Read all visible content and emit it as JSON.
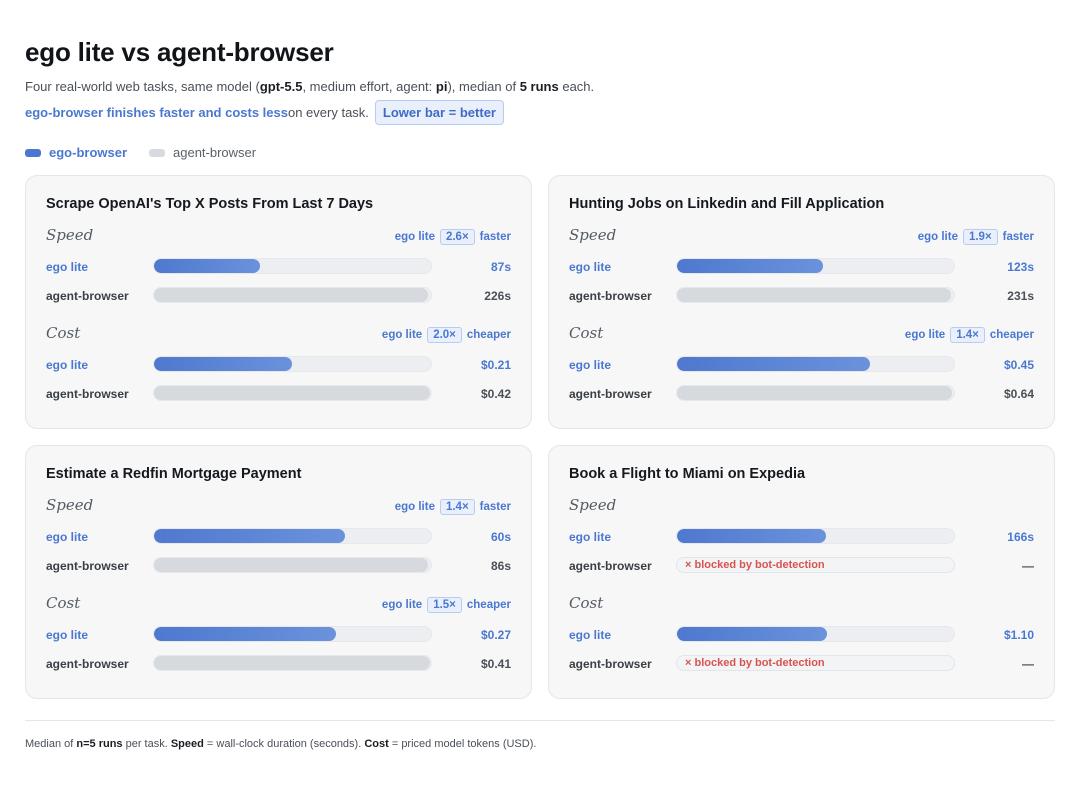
{
  "header": {
    "title": "ego lite vs agent-browser",
    "subtitle_1": "Four real-world web tasks, same model (",
    "model": "gpt-5.5",
    "subtitle_2": ", medium effort, agent: ",
    "agent": "pi",
    "subtitle_3": "), median of ",
    "runs": "5 runs",
    "subtitle_4": " each.",
    "tagline_highlight": "ego-browser finishes faster and costs less",
    "tagline_rest": " on every task.",
    "tagline_pill": "Lower bar = better"
  },
  "legend": {
    "ego": "ego-browser",
    "ab": "agent-browser"
  },
  "colors": {
    "ego": "#4a78d0",
    "agent_browser": "#d7dadf",
    "blocked": "#d9534f"
  },
  "labels": {
    "speed": "Speed",
    "cost": "Cost",
    "ego_row": "ego lite",
    "ab_row": "agent-browser",
    "ratio_prefix": "ego lite",
    "faster": "faster",
    "cheaper": "cheaper"
  },
  "chart_data": [
    {
      "type": "bar",
      "title": "Scrape OpenAI's Top X Posts From Last 7 Days",
      "speed": {
        "ratio": "2.6×",
        "max": 230,
        "ego": {
          "value": 87,
          "label": "87s"
        },
        "ab": {
          "value": 226,
          "label": "226s",
          "blocked": false
        }
      },
      "cost": {
        "ratio": "2.0×",
        "max": 0.425,
        "ego": {
          "value": 0.21,
          "label": "$0.21"
        },
        "ab": {
          "value": 0.42,
          "label": "$0.42",
          "blocked": false
        }
      }
    },
    {
      "type": "bar",
      "title": "Hunting Jobs on Linkedin and Fill Application",
      "speed": {
        "ratio": "1.9×",
        "max": 235,
        "ego": {
          "value": 123,
          "label": "123s"
        },
        "ab": {
          "value": 231,
          "label": "231s",
          "blocked": false
        }
      },
      "cost": {
        "ratio": "1.4×",
        "max": 0.65,
        "ego": {
          "value": 0.45,
          "label": "$0.45"
        },
        "ab": {
          "value": 0.64,
          "label": "$0.64",
          "blocked": false
        }
      }
    },
    {
      "type": "bar",
      "title": "Estimate a Redfin Mortgage Payment",
      "speed": {
        "ratio": "1.4×",
        "max": 87.5,
        "ego": {
          "value": 60,
          "label": "60s"
        },
        "ab": {
          "value": 86,
          "label": "86s",
          "blocked": false
        }
      },
      "cost": {
        "ratio": "1.5×",
        "max": 0.415,
        "ego": {
          "value": 0.27,
          "label": "$0.27"
        },
        "ab": {
          "value": 0.41,
          "label": "$0.41",
          "blocked": false
        }
      }
    },
    {
      "type": "bar",
      "title": "Book a Flight to Miami on Expedia",
      "speed": {
        "ratio": "",
        "max": 310,
        "ego": {
          "value": 166,
          "label": "166s"
        },
        "ab": {
          "value": null,
          "label": "—",
          "blocked": true,
          "blocked_text": "× blocked by bot-detection"
        }
      },
      "cost": {
        "ratio": "",
        "max": 2.05,
        "ego": {
          "value": 1.1,
          "label": "$1.10"
        },
        "ab": {
          "value": null,
          "label": "—",
          "blocked": true,
          "blocked_text": "× blocked by bot-detection"
        }
      }
    }
  ],
  "footer": {
    "p1": "Median of ",
    "runs": "n=5 runs",
    "p2": " per task. ",
    "speed": "Speed",
    "p3": " = wall-clock duration (seconds). ",
    "cost": "Cost",
    "p4": " = priced model tokens (USD)."
  }
}
